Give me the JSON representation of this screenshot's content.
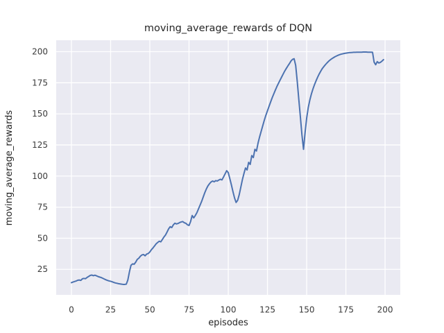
{
  "chart_data": {
    "type": "line",
    "title": "moving_average_rewards of DQN",
    "xlabel": "episodes",
    "ylabel": "moving_average_rewards",
    "x_ticks": [
      0,
      25,
      50,
      75,
      100,
      125,
      150,
      175,
      200
    ],
    "y_ticks": [
      25,
      50,
      75,
      100,
      125,
      150,
      175,
      200
    ],
    "xlim": [
      -9.7,
      209.7
    ],
    "ylim": [
      4.5,
      209.2
    ],
    "grid": true,
    "legend": "none",
    "style": {
      "line_color": "#4c72b0",
      "line_width": 2,
      "plot_bg": "#eaeaf2",
      "grid_color": "#ffffff",
      "fig_bg": "#ffffff",
      "text_color": "#262626"
    },
    "series": [
      {
        "name": "moving_average_rewards",
        "x_start": 0,
        "x_step": 1,
        "values": [
          14.3,
          14.8,
          15.2,
          15.6,
          16.2,
          16.4,
          16.1,
          17.4,
          17.7,
          17.5,
          18.5,
          19.3,
          20.1,
          20.4,
          19.9,
          20.3,
          19.8,
          19.2,
          18.8,
          18.4,
          17.8,
          17.2,
          16.6,
          16.1,
          15.7,
          15.4,
          15.0,
          14.5,
          14.1,
          13.8,
          13.5,
          13.3,
          13.1,
          12.9,
          12.9,
          13.1,
          16.5,
          23.0,
          28.3,
          29.4,
          29.1,
          30.8,
          33.0,
          34.0,
          35.6,
          36.6,
          36.9,
          35.9,
          37.3,
          37.7,
          39.0,
          40.8,
          42.2,
          43.8,
          45.5,
          46.6,
          47.6,
          47.1,
          49.0,
          51.0,
          52.6,
          55.0,
          57.6,
          59.3,
          58.6,
          60.8,
          62.1,
          61.5,
          61.9,
          62.6,
          63.1,
          63.4,
          62.5,
          62.0,
          60.8,
          60.3,
          63.5,
          68.3,
          66.4,
          68.3,
          70.5,
          73.5,
          76.5,
          79.5,
          83.0,
          86.5,
          89.5,
          92.0,
          93.8,
          95.2,
          96.0,
          95.4,
          96.3,
          96.0,
          96.8,
          97.4,
          96.9,
          99.3,
          101.8,
          104.3,
          102.8,
          98.0,
          93.0,
          87.5,
          82.5,
          78.8,
          80.5,
          85.0,
          91.0,
          97.0,
          102.0,
          106.5,
          104.9,
          111.0,
          109.4,
          116.5,
          114.9,
          121.5,
          120.1,
          126.5,
          131.5,
          136.0,
          140.5,
          144.9,
          148.9,
          152.5,
          156.0,
          159.5,
          162.9,
          166.0,
          169.0,
          171.9,
          174.5,
          177.0,
          179.5,
          182.0,
          184.4,
          186.5,
          188.5,
          190.4,
          192.5,
          193.8,
          194.3,
          189.0,
          176.0,
          161.5,
          147.5,
          133.0,
          121.5,
          135.0,
          146.5,
          155.0,
          161.0,
          165.9,
          170.0,
          173.5,
          176.6,
          179.5,
          182.1,
          184.4,
          186.5,
          188.1,
          189.6,
          191.0,
          192.3,
          193.4,
          194.3,
          195.1,
          195.9,
          196.5,
          197.1,
          197.6,
          198.0,
          198.3,
          198.6,
          198.8,
          199.0,
          199.2,
          199.3,
          199.4,
          199.5,
          199.5,
          199.6,
          199.6,
          199.6,
          199.6,
          199.7,
          199.7,
          199.7,
          199.6,
          199.6,
          199.6,
          199.5,
          191.6,
          189.5,
          192.0,
          190.9,
          191.4,
          192.4,
          193.6
        ]
      }
    ]
  }
}
